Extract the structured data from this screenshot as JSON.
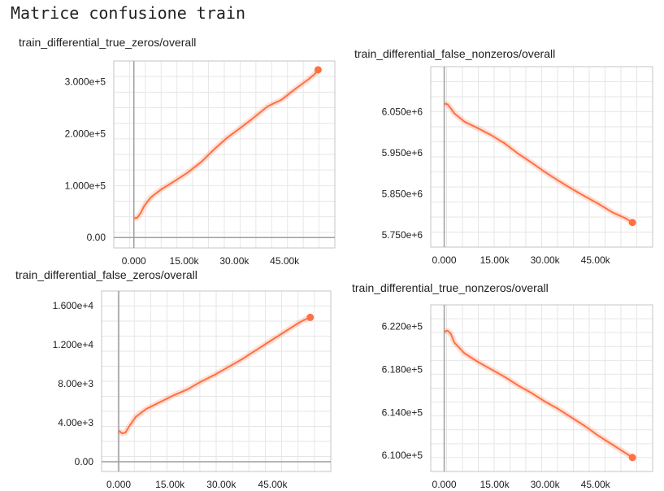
{
  "heading": "Matrice confusione train",
  "chart_data": [
    {
      "type": "line",
      "title": "train_differential_true_zeros/overall",
      "x_ticks": [
        "0.000",
        "15.00k",
        "30.00k",
        "45.00k"
      ],
      "y_ticks": [
        "0.00",
        "1.000e+5",
        "2.000e+5",
        "3.000e+5"
      ],
      "xlim": [
        -6000,
        60000
      ],
      "ylim": [
        -20000,
        340000
      ],
      "grid": true,
      "series": [
        {
          "color": "#ff7043",
          "x": [
            0,
            1000,
            2000,
            3000,
            5000,
            8000,
            12000,
            16000,
            20000,
            24000,
            28000,
            32000,
            36000,
            40000,
            44000,
            48000,
            52000,
            54000,
            55000
          ],
          "y": [
            37000,
            38000,
            47000,
            60000,
            77000,
            92000,
            108000,
            125000,
            145000,
            170000,
            193000,
            212000,
            232000,
            253000,
            265000,
            285000,
            304000,
            315000,
            323000
          ]
        }
      ]
    },
    {
      "type": "line",
      "title": "train_differential_false_nonzeros/overall",
      "x_ticks": [
        "0.000",
        "15.00k",
        "30.00k",
        "45.00k"
      ],
      "y_ticks": [
        "5.750e+6",
        "5.850e+6",
        "5.950e+6",
        "6.050e+6"
      ],
      "xlim": [
        -4000,
        62000
      ],
      "ylim": [
        5720000,
        6160000
      ],
      "grid": true,
      "series": [
        {
          "color": "#ff7043",
          "x": [
            0,
            1000,
            2000,
            3000,
            6000,
            10000,
            14000,
            18000,
            22000,
            26000,
            30000,
            34000,
            38000,
            42000,
            46000,
            50000,
            54000,
            56000
          ],
          "y": [
            6070000,
            6068000,
            6058000,
            6046000,
            6026000,
            6010000,
            5993000,
            5973000,
            5948000,
            5926000,
            5903000,
            5882000,
            5862000,
            5843000,
            5825000,
            5805000,
            5790000,
            5780000
          ]
        }
      ]
    },
    {
      "type": "line",
      "title": "train_differential_false_zeros/overall",
      "x_ticks": [
        "0.000",
        "15.00k",
        "30.00k",
        "45.00k"
      ],
      "y_ticks": [
        "0.00",
        "4.00e+3",
        "8.00e+3",
        "1.200e+4",
        "1.600e+4"
      ],
      "xlim": [
        -5000,
        62000
      ],
      "ylim": [
        -1000,
        17500
      ],
      "grid": true,
      "series": [
        {
          "color": "#ff7043",
          "x": [
            0,
            1000,
            2000,
            3000,
            5000,
            8000,
            12000,
            16000,
            20000,
            24000,
            28000,
            32000,
            36000,
            40000,
            44000,
            48000,
            52000,
            54000,
            56000
          ],
          "y": [
            3200,
            2900,
            3000,
            3600,
            4600,
            5400,
            6100,
            6800,
            7400,
            8200,
            8900,
            9700,
            10500,
            11400,
            12300,
            13200,
            14100,
            14500,
            14800
          ]
        }
      ]
    },
    {
      "type": "line",
      "title": "train_differential_true_nonzeros/overall",
      "x_ticks": [
        "0.000",
        "15.00k",
        "30.00k",
        "45.00k"
      ],
      "y_ticks": [
        "6.100e+5",
        "6.140e+5",
        "6.180e+5",
        "6.220e+5"
      ],
      "xlim": [
        -4000,
        62000
      ],
      "ylim": [
        608500,
        624000
      ],
      "grid": true,
      "series": [
        {
          "color": "#ff7043",
          "x": [
            0,
            1000,
            2000,
            3000,
            6000,
            10000,
            14000,
            18000,
            22000,
            26000,
            30000,
            34000,
            38000,
            42000,
            46000,
            50000,
            54000,
            56000
          ],
          "y": [
            621500,
            621600,
            621300,
            620500,
            619500,
            618700,
            618000,
            617300,
            616500,
            615800,
            615000,
            614300,
            613500,
            612700,
            611800,
            611000,
            610200,
            609800
          ]
        }
      ]
    }
  ]
}
